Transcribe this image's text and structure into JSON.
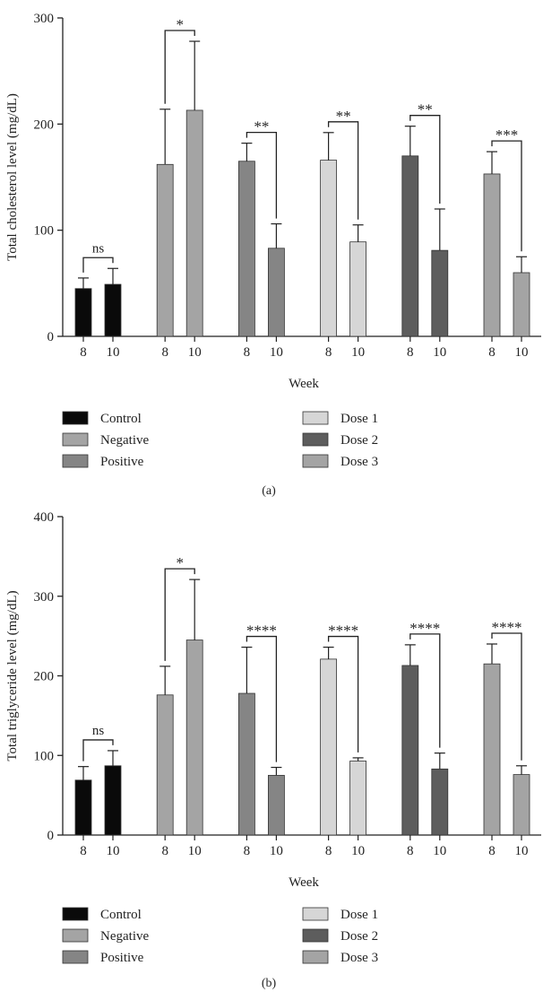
{
  "chart_data": [
    {
      "type": "bar",
      "panel_label": "(a)",
      "ylabel": "Total cholesterol level (mg/dL)",
      "xlabel": "Week",
      "ylim": [
        0,
        300
      ],
      "yticks": [
        0,
        100,
        200,
        300
      ],
      "groups": [
        {
          "name": "Control",
          "color": "#0a0a0a",
          "weeks": [
            "8",
            "10"
          ],
          "values": [
            45,
            49
          ],
          "errors": [
            10,
            15
          ],
          "significance": "ns"
        },
        {
          "name": "Negative",
          "color": "#a4a4a4",
          "weeks": [
            "8",
            "10"
          ],
          "values": [
            162,
            213
          ],
          "errors": [
            52,
            65
          ],
          "significance": "*"
        },
        {
          "name": "Positive",
          "color": "#858585",
          "weeks": [
            "8",
            "10"
          ],
          "values": [
            165,
            83
          ],
          "errors": [
            17,
            23
          ],
          "significance": "**"
        },
        {
          "name": "Dose 1",
          "color": "#d6d6d6",
          "weeks": [
            "8",
            "10"
          ],
          "values": [
            166,
            89
          ],
          "errors": [
            26,
            16
          ],
          "significance": "**"
        },
        {
          "name": "Dose 2",
          "color": "#5d5d5d",
          "weeks": [
            "8",
            "10"
          ],
          "values": [
            170,
            81
          ],
          "errors": [
            28,
            39
          ],
          "significance": "**"
        },
        {
          "name": "Dose 3",
          "color": "#a4a4a4",
          "weeks": [
            "8",
            "10"
          ],
          "values": [
            153,
            60
          ],
          "errors": [
            21,
            15
          ],
          "significance": "***"
        }
      ]
    },
    {
      "type": "bar",
      "panel_label": "(b)",
      "ylabel": "Total triglyceride level (mg/dL)",
      "xlabel": "Week",
      "ylim": [
        0,
        400
      ],
      "yticks": [
        0,
        100,
        200,
        300,
        400
      ],
      "groups": [
        {
          "name": "Control",
          "color": "#0a0a0a",
          "weeks": [
            "8",
            "10"
          ],
          "values": [
            69,
            87
          ],
          "errors": [
            17,
            19
          ],
          "significance": "ns"
        },
        {
          "name": "Negative",
          "color": "#a4a4a4",
          "weeks": [
            "8",
            "10"
          ],
          "values": [
            176,
            245
          ],
          "errors": [
            36,
            76
          ],
          "significance": "*"
        },
        {
          "name": "Positive",
          "color": "#858585",
          "weeks": [
            "8",
            "10"
          ],
          "values": [
            178,
            75
          ],
          "errors": [
            58,
            10
          ],
          "significance": "****"
        },
        {
          "name": "Dose 1",
          "color": "#d6d6d6",
          "weeks": [
            "8",
            "10"
          ],
          "values": [
            221,
            93
          ],
          "errors": [
            15,
            4
          ],
          "significance": "****"
        },
        {
          "name": "Dose 2",
          "color": "#5d5d5d",
          "weeks": [
            "8",
            "10"
          ],
          "values": [
            213,
            83
          ],
          "errors": [
            26,
            20
          ],
          "significance": "****"
        },
        {
          "name": "Dose 3",
          "color": "#a4a4a4",
          "weeks": [
            "8",
            "10"
          ],
          "values": [
            215,
            76
          ],
          "errors": [
            25,
            11
          ],
          "significance": "****"
        }
      ]
    }
  ]
}
